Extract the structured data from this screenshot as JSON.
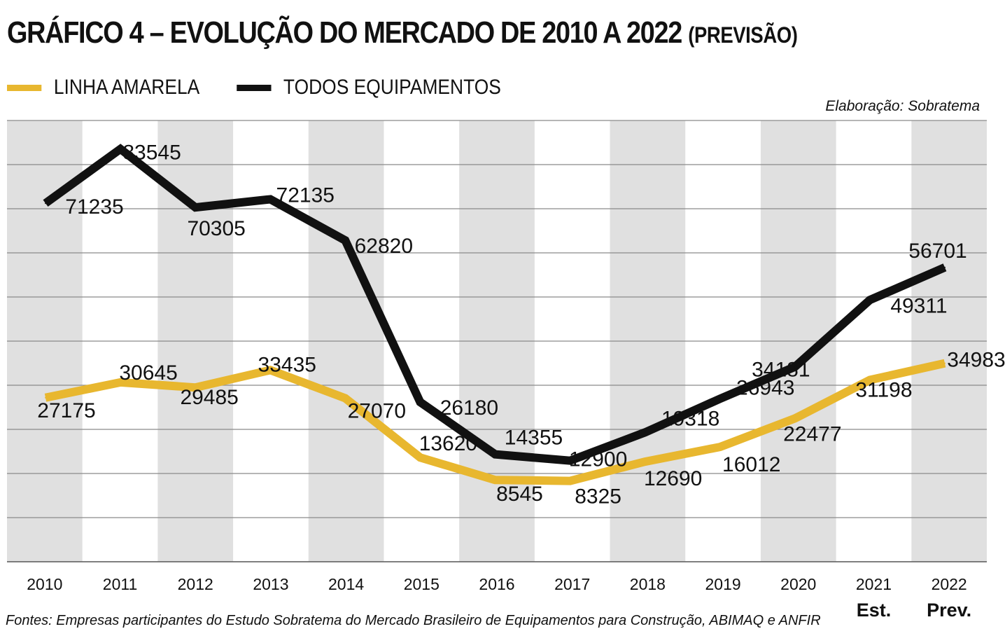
{
  "header": {
    "title": "GRÁFICO 4 – EVOLUÇÃO DO MERCADO DE 2010 A 2022",
    "title_suffix": "(PREVISÃO)",
    "credit": "Elaboração: Sobratema"
  },
  "footer": {
    "source": "Fontes: Empresas participantes do Estudo Sobratema do Mercado Brasileiro de Equipamentos para Construção, ABIMAQ e ANFIR"
  },
  "colors": {
    "yellow": "#e8b72f",
    "black": "#111111",
    "band": "#e0e0e0",
    "grid": "#8a8a8a"
  },
  "chart_data": {
    "type": "line",
    "title": "GRÁFICO 4 – EVOLUÇÃO DO MERCADO DE 2010 A 2022 (PREVISÃO)",
    "categories": [
      "2010",
      "2011",
      "2012",
      "2013",
      "2014",
      "2015",
      "2016",
      "2017",
      "2018",
      "2019",
      "2020",
      "2021",
      "2022"
    ],
    "category_sublabels": [
      "",
      "",
      "",
      "",
      "",
      "",
      "",
      "",
      "",
      "",
      "",
      "Est.",
      "Prev."
    ],
    "ylim": [
      -10000,
      90000
    ],
    "y_gridlines": [
      0,
      10000,
      20000,
      30000,
      40000,
      50000,
      60000,
      70000,
      80000,
      90000
    ],
    "series": [
      {
        "name": "LINHA AMARELA",
        "color": "#e8b72f",
        "values": [
          27175,
          30645,
          29485,
          33435,
          27070,
          13620,
          8545,
          8325,
          12690,
          16012,
          22477,
          31198,
          34983
        ]
      },
      {
        "name": "TODOS EQUIPAMENTOS",
        "color": "#111111",
        "values": [
          71235,
          83545,
          70305,
          72135,
          62820,
          26180,
          14355,
          12900,
          19318,
          26943,
          34181,
          49311,
          56701
        ]
      }
    ],
    "legend_position": "top-left"
  }
}
